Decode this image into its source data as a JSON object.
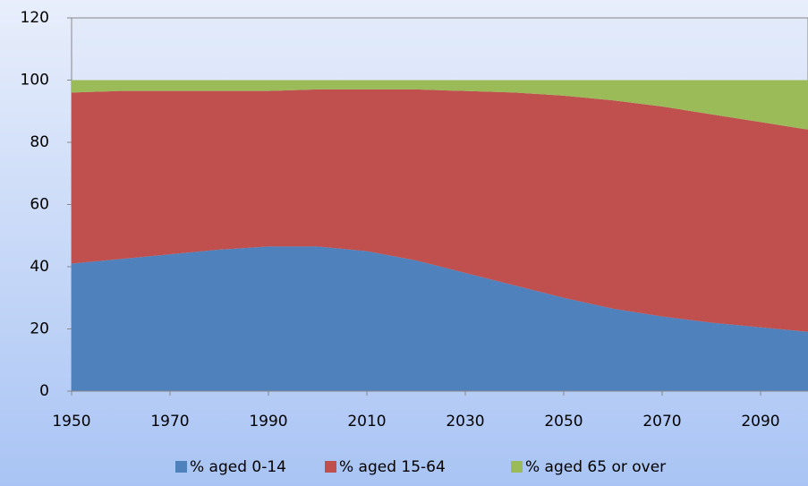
{
  "chart_data": {
    "type": "stacked_area",
    "x": [
      1950,
      1960,
      1970,
      1980,
      1990,
      2000,
      2010,
      2020,
      2030,
      2040,
      2050,
      2060,
      2070,
      2080,
      2090,
      2100
    ],
    "series": [
      {
        "name": "% aged 0-14",
        "color": "#4f81bd",
        "values": [
          41,
          42.5,
          44,
          45.5,
          46.5,
          46.5,
          45,
          42,
          38,
          34,
          30,
          26.5,
          24,
          22,
          20.5,
          19
        ]
      },
      {
        "name": "% aged 15-64",
        "color": "#c0504d",
        "values": [
          55,
          54,
          52.5,
          51,
          50,
          50.5,
          52,
          55,
          58.5,
          62,
          65,
          67,
          67.5,
          67,
          66,
          65
        ]
      },
      {
        "name": "% aged 65 or over",
        "color": "#9bbb59",
        "values": [
          4,
          3.5,
          3.5,
          3.5,
          3.5,
          3,
          3,
          3,
          3.5,
          4,
          5,
          6.5,
          8.5,
          11,
          13.5,
          16
        ]
      }
    ],
    "xlim": [
      1950,
      2100
    ],
    "xticks": [
      1950,
      1970,
      1990,
      2010,
      2030,
      2050,
      2070,
      2090
    ],
    "ylim": [
      0,
      120
    ],
    "yticks": [
      0,
      20,
      40,
      60,
      80,
      100,
      120
    ],
    "legend": "bottom"
  }
}
